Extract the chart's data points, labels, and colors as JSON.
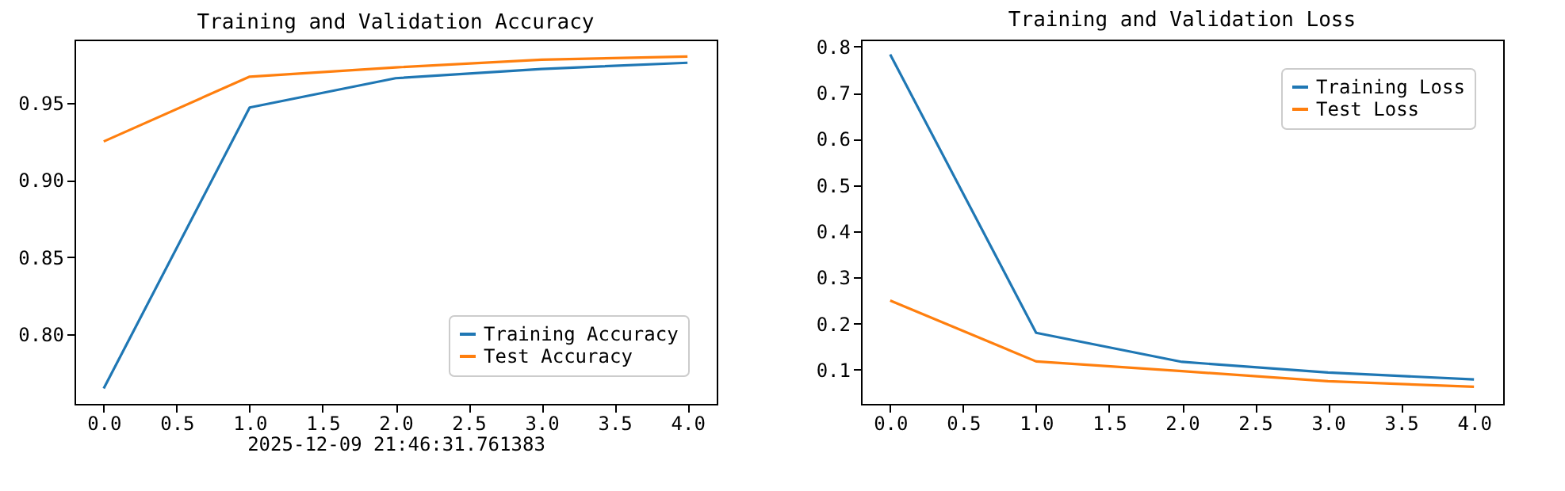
{
  "chart_data": [
    {
      "type": "line",
      "title": "Training and Validation Accuracy",
      "xlabel": "2025-12-09 21:46:31.761383",
      "x": [
        0,
        1,
        2,
        3,
        4
      ],
      "series": [
        {
          "name": "Training Accuracy",
          "color": "#1f77b4",
          "values": [
            0.765,
            0.947,
            0.966,
            0.972,
            0.976
          ]
        },
        {
          "name": "Test Accuracy",
          "color": "#ff7f0e",
          "values": [
            0.925,
            0.967,
            0.973,
            0.978,
            0.98
          ]
        }
      ],
      "xlim": [
        -0.2,
        4.2
      ],
      "ylim": [
        0.755,
        0.991
      ],
      "xticks": [
        {
          "value": 0,
          "label": "0.0"
        },
        {
          "value": 0.5,
          "label": "0.5"
        },
        {
          "value": 1,
          "label": "1.0"
        },
        {
          "value": 1.5,
          "label": "1.5"
        },
        {
          "value": 2,
          "label": "2.0"
        },
        {
          "value": 2.5,
          "label": "2.5"
        },
        {
          "value": 3,
          "label": "3.0"
        },
        {
          "value": 3.5,
          "label": "3.5"
        },
        {
          "value": 4,
          "label": "4.0"
        }
      ],
      "yticks": [
        {
          "value": 0.8,
          "label": "0.80"
        },
        {
          "value": 0.85,
          "label": "0.85"
        },
        {
          "value": 0.9,
          "label": "0.90"
        },
        {
          "value": 0.95,
          "label": "0.95"
        }
      ],
      "grid": false,
      "legend": "bottom right",
      "marker": "none",
      "line_style": "solid"
    },
    {
      "type": "line",
      "title": "Training and Validation Loss",
      "x": [
        0,
        1,
        2,
        3,
        4
      ],
      "series": [
        {
          "name": "Training Loss",
          "color": "#1f77b4",
          "values": [
            0.783,
            0.18,
            0.117,
            0.094,
            0.079
          ]
        },
        {
          "name": "Test Loss",
          "color": "#ff7f0e",
          "values": [
            0.25,
            0.118,
            0.097,
            0.075,
            0.063
          ]
        }
      ],
      "xlim": [
        -0.2,
        4.2
      ],
      "ylim": [
        0.026,
        0.815
      ],
      "xticks": [
        {
          "value": 0,
          "label": "0.0"
        },
        {
          "value": 0.5,
          "label": "0.5"
        },
        {
          "value": 1,
          "label": "1.0"
        },
        {
          "value": 1.5,
          "label": "1.5"
        },
        {
          "value": 2,
          "label": "2.0"
        },
        {
          "value": 2.5,
          "label": "2.5"
        },
        {
          "value": 3,
          "label": "3.0"
        },
        {
          "value": 3.5,
          "label": "3.5"
        },
        {
          "value": 4,
          "label": "4.0"
        }
      ],
      "yticks": [
        0.1,
        0.2,
        0.3,
        0.4,
        0.5,
        0.6,
        0.7,
        0.8
      ],
      "grid": false,
      "legend": "top right",
      "marker": "none",
      "line_style": "solid"
    }
  ]
}
